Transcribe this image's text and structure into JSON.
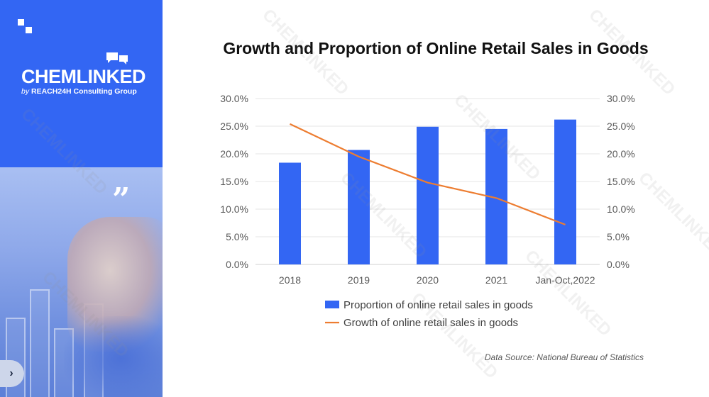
{
  "brand": {
    "name": "CHEMLINKED",
    "by": "by",
    "company": "REACH24H Consulting Group",
    "accent_color": "#3366f3"
  },
  "icons": [
    "logo-squares-icon",
    "chat-bubbles-icon",
    "quote-icon",
    "chevron-right-icon"
  ],
  "nav": {
    "next_label": "›"
  },
  "source": "Data Source: National Bureau of Statistics",
  "watermark": "CHEMLINKED",
  "chart_data": {
    "type": "bar+line",
    "title": "Growth and Proportion of Online Retail Sales in Goods",
    "categories": [
      "2018",
      "2019",
      "2020",
      "2021",
      "Jan-Oct,2022"
    ],
    "series": [
      {
        "name": "Proportion of online retail sales in goods",
        "type": "bar",
        "axis": "left",
        "color": "#3366f3",
        "values": [
          18.4,
          20.7,
          24.9,
          24.5,
          26.2
        ]
      },
      {
        "name": "Growth of online retail sales in goods",
        "type": "line",
        "axis": "right",
        "color": "#ed7d31",
        "values": [
          25.4,
          19.5,
          14.8,
          12.0,
          7.2
        ]
      }
    ],
    "y_ticks": [
      "0.0%",
      "5.0%",
      "10.0%",
      "15.0%",
      "20.0%",
      "25.0%",
      "30.0%"
    ],
    "ylim": [
      0,
      30
    ],
    "y2lim": [
      0,
      30
    ],
    "grid": true,
    "legend_position": "bottom"
  }
}
